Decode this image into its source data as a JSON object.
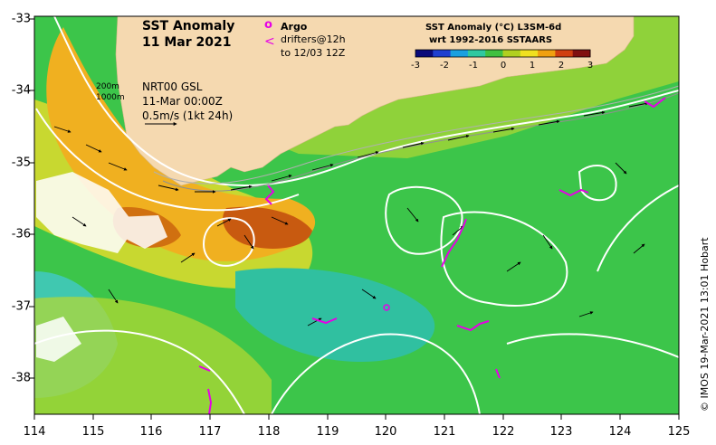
{
  "title": {
    "line1": "SST Anomaly",
    "line2": "11 Mar 2021"
  },
  "legend": {
    "argo_label": "Argo",
    "drifters_label": "drifters@12h",
    "drifters_date": "to 12/03 12Z",
    "argo_symbol": "o",
    "drifter_symbol": "<",
    "color": "#e600e6"
  },
  "currents_legend": {
    "depth1": "200m",
    "depth2": "1000m",
    "product": "NRT00 GSL",
    "time": "11-Mar 00:00Z",
    "scale": "0.5m/s (1kt 24h)"
  },
  "colorbar": {
    "title": "SST Anomaly (°C) L3SM-6d",
    "subtitle": "wrt 1992-2016 SSTAARS",
    "ticks": [
      "-3",
      "-2",
      "-1",
      "0",
      "1",
      "2",
      "3"
    ],
    "range": [
      -3,
      3
    ],
    "colors": [
      "#0a0a7a",
      "#1f3fd0",
      "#1aa0e0",
      "#30c8a0",
      "#40c040",
      "#b0d020",
      "#f0e020",
      "#f0a010",
      "#d04010",
      "#801010"
    ]
  },
  "axes": {
    "x_ticks": [
      "114",
      "115",
      "116",
      "117",
      "118",
      "119",
      "120",
      "121",
      "122",
      "123",
      "124",
      "125"
    ],
    "y_ticks": [
      "-33",
      "-34",
      "-35",
      "-36",
      "-37",
      "-38"
    ]
  },
  "credit": "© IMOS 19-Mar-2021 13:01 Hobart",
  "colors": {
    "land": "#f5d9b0",
    "contour": "#ffffff",
    "ocean_base": "#3cc54a"
  }
}
